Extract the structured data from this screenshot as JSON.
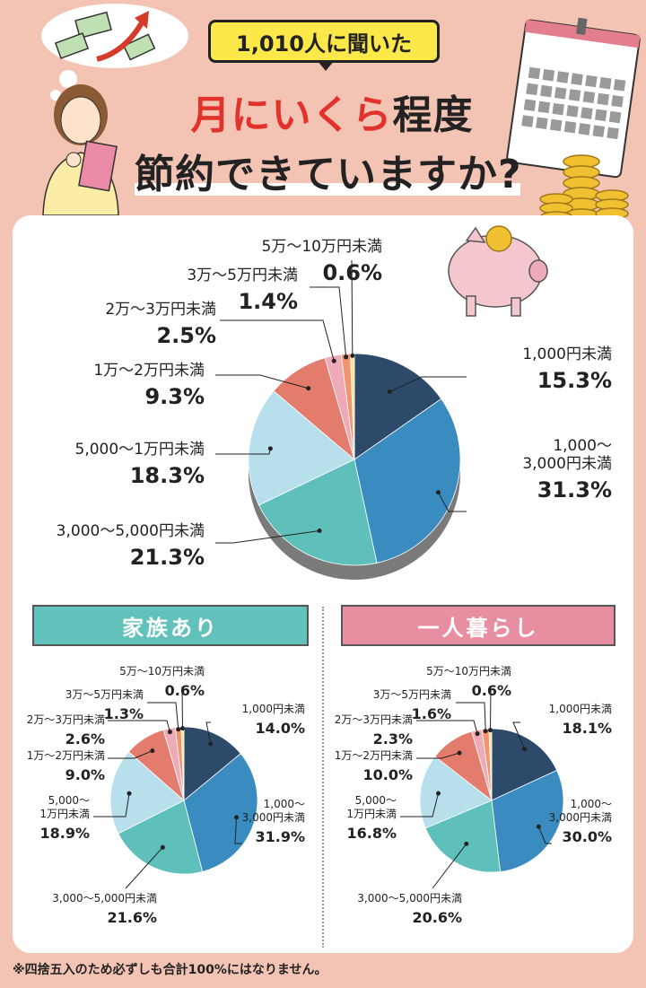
{
  "header": {
    "badge": "1,010人に聞いた",
    "title_line1_red": "月にいくら",
    "title_line1_rest": "程度",
    "title_line2": "節約できていますか?"
  },
  "sections": {
    "family": "家族あり",
    "single": "一人暮らし"
  },
  "footnote": "※四捨五入のため必ずしも合計100%にはなりません。",
  "colors": {
    "c1": "#2e4a6b",
    "c2": "#3a8cc0",
    "c3": "#5fc0bb",
    "c4": "#b7e0ec",
    "c5": "#e47c6e",
    "c6": "#eeaab6",
    "c7": "#f2956f",
    "c8": "#fbe38e"
  },
  "chart_data": [
    {
      "type": "pie",
      "name": "overall",
      "categories": [
        "1,000円未満",
        "1,000〜3,000円未満",
        "3,000〜5,000円未満",
        "5,000〜1万円未満",
        "1万〜2万円未満",
        "2万〜3万円未満",
        "3万〜5万円未満",
        "5万〜10万円未満"
      ],
      "values": [
        15.3,
        31.3,
        21.3,
        18.3,
        9.3,
        2.5,
        1.4,
        0.6
      ],
      "labels": [
        "15.3%",
        "31.3%",
        "21.3%",
        "18.3%",
        "9.3%",
        "2.5%",
        "1.4%",
        "0.6%"
      ]
    },
    {
      "type": "pie",
      "name": "家族あり",
      "categories": [
        "1,000円未満",
        "1,000〜3,000円未満",
        "3,000〜5,000円未満",
        "5,000〜1万円未満",
        "1万〜2万円未満",
        "2万〜3万円未満",
        "3万〜5万円未満",
        "5万〜10万円未満"
      ],
      "values": [
        14.0,
        31.9,
        21.6,
        18.9,
        9.0,
        2.6,
        1.3,
        0.6
      ],
      "labels": [
        "14.0%",
        "31.9%",
        "21.6%",
        "18.9%",
        "9.0%",
        "2.6%",
        "1.3%",
        "0.6%"
      ]
    },
    {
      "type": "pie",
      "name": "一人暮らし",
      "categories": [
        "1,000円未満",
        "1,000〜3,000円未満",
        "3,000〜5,000円未満",
        "5,000〜1万円未満",
        "1万〜2万円未満",
        "2万〜3万円未満",
        "3万〜5万円未満",
        "5万〜10万円未満"
      ],
      "values": [
        18.1,
        30.0,
        20.6,
        16.8,
        10.0,
        2.3,
        1.6,
        0.6
      ],
      "labels": [
        "18.1%",
        "30.0%",
        "20.6%",
        "16.8%",
        "10.0%",
        "2.3%",
        "1.6%",
        "0.6%"
      ]
    }
  ]
}
